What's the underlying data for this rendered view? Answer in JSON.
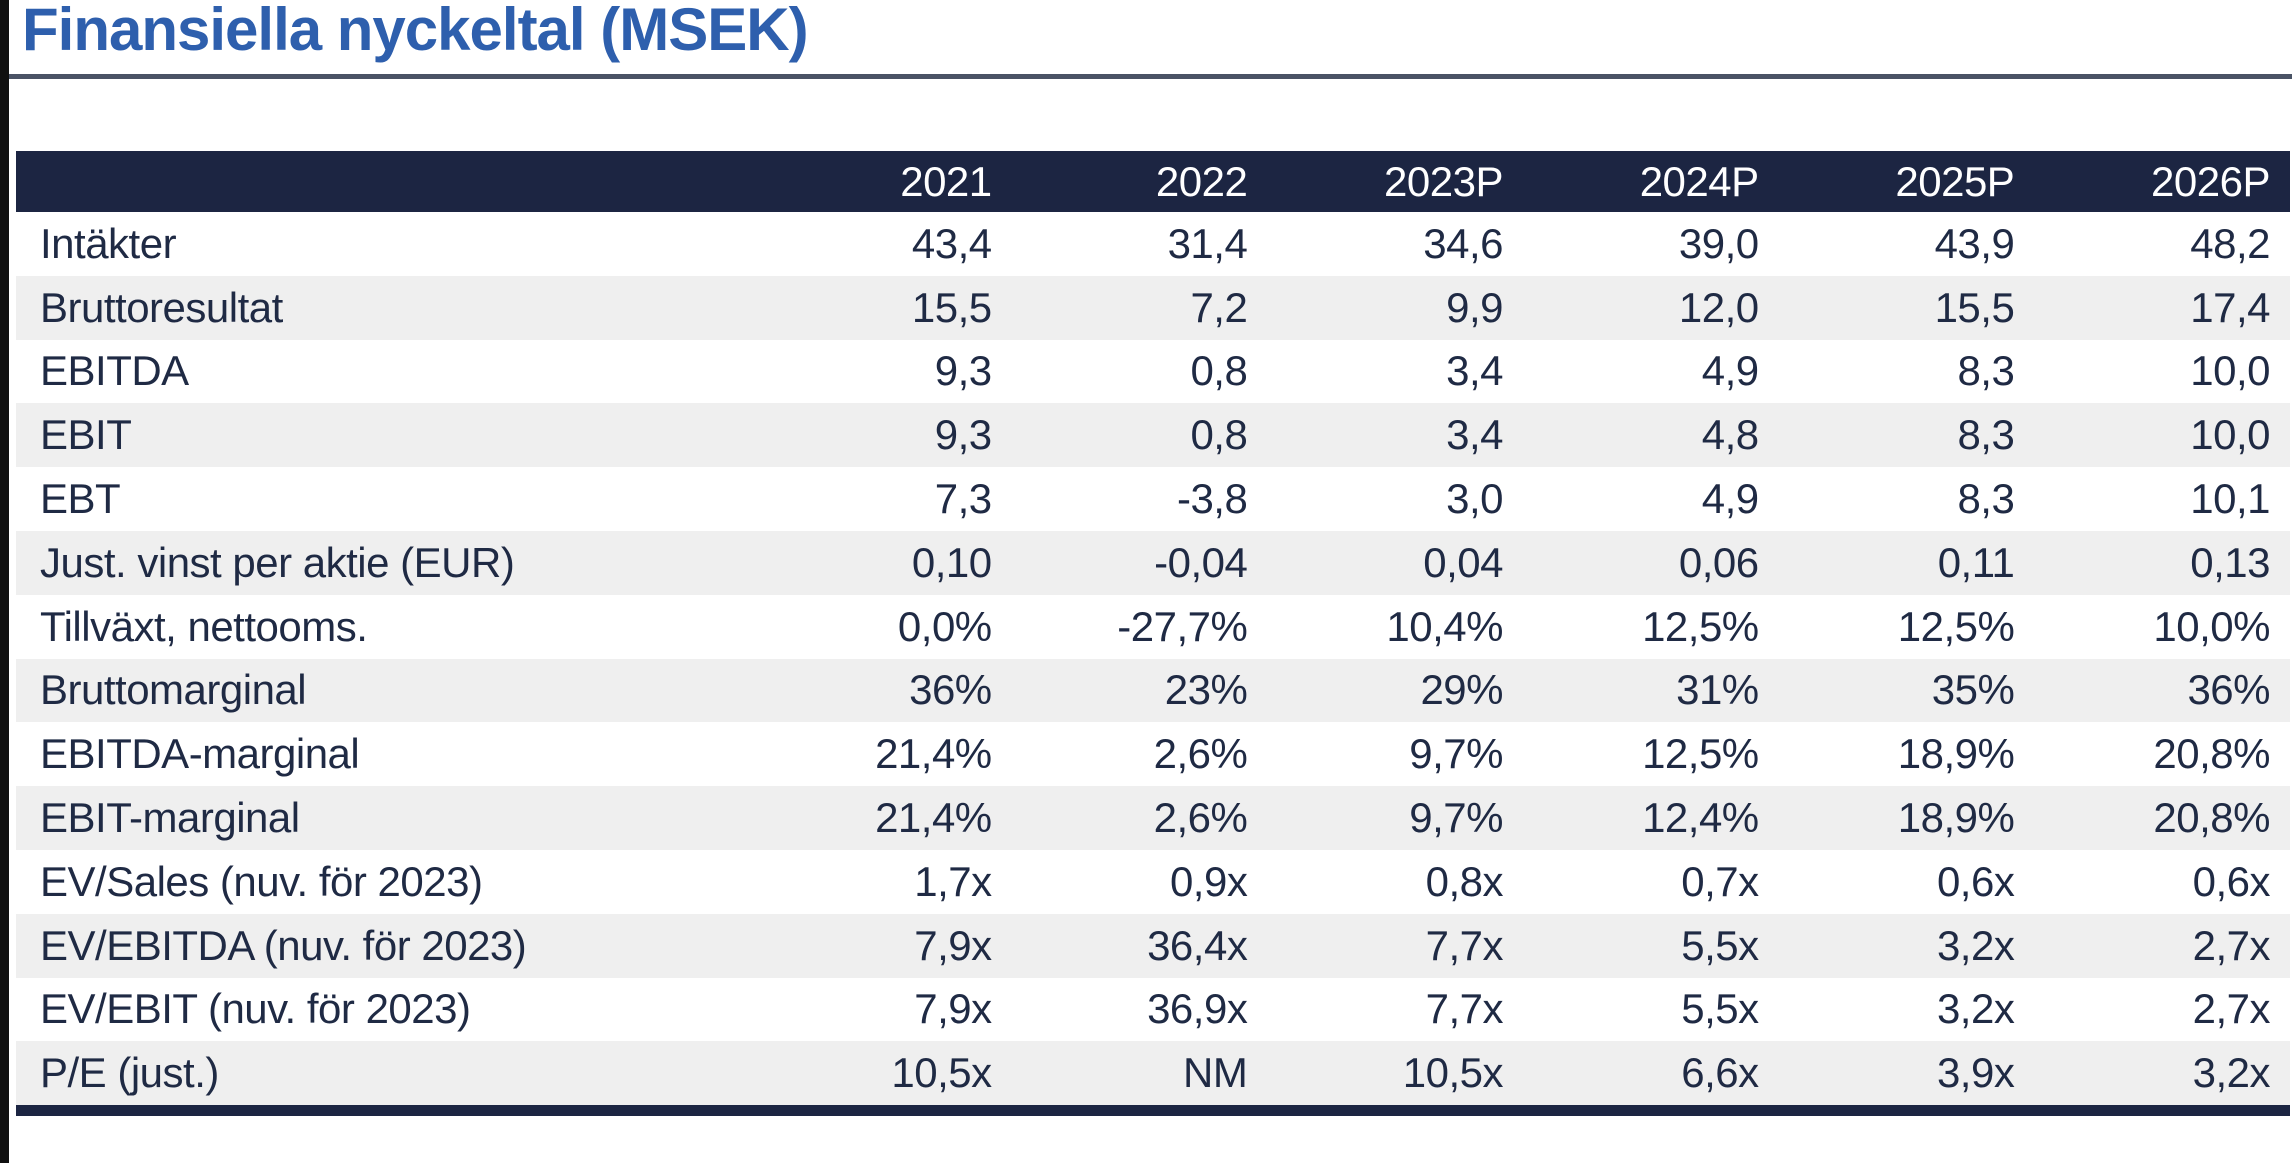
{
  "title": "Finansiella nyckeltal (MSEK)",
  "table": {
    "label_header": "",
    "columns": [
      "2021",
      "2022",
      "2023P",
      "2024P",
      "2025P",
      "2026P"
    ],
    "rows": [
      {
        "label": "Intäkter",
        "values": [
          "43,4",
          "31,4",
          "34,6",
          "39,0",
          "43,9",
          "48,2"
        ]
      },
      {
        "label": "Bruttoresultat",
        "values": [
          "15,5",
          "7,2",
          "9,9",
          "12,0",
          "15,5",
          "17,4"
        ]
      },
      {
        "label": "EBITDA",
        "values": [
          "9,3",
          "0,8",
          "3,4",
          "4,9",
          "8,3",
          "10,0"
        ]
      },
      {
        "label": "EBIT",
        "values": [
          "9,3",
          "0,8",
          "3,4",
          "4,8",
          "8,3",
          "10,0"
        ]
      },
      {
        "label": "EBT",
        "values": [
          "7,3",
          "-3,8",
          "3,0",
          "4,9",
          "8,3",
          "10,1"
        ]
      },
      {
        "label": "Just. vinst per aktie (EUR)",
        "values": [
          "0,10",
          "-0,04",
          "0,04",
          "0,06",
          "0,11",
          "0,13"
        ]
      },
      {
        "label": "Tillväxt, nettooms.",
        "values": [
          "0,0%",
          "-27,7%",
          "10,4%",
          "12,5%",
          "12,5%",
          "10,0%"
        ]
      },
      {
        "label": "Bruttomarginal",
        "values": [
          "36%",
          "23%",
          "29%",
          "31%",
          "35%",
          "36%"
        ]
      },
      {
        "label": "EBITDA-marginal",
        "values": [
          "21,4%",
          "2,6%",
          "9,7%",
          "12,5%",
          "18,9%",
          "20,8%"
        ]
      },
      {
        "label": "EBIT-marginal",
        "values": [
          "21,4%",
          "2,6%",
          "9,7%",
          "12,4%",
          "18,9%",
          "20,8%"
        ]
      },
      {
        "label": "EV/Sales (nuv. för 2023)",
        "values": [
          "1,7x",
          "0,9x",
          "0,8x",
          "0,7x",
          "0,6x",
          "0,6x"
        ]
      },
      {
        "label": "EV/EBITDA (nuv. för 2023)",
        "values": [
          "7,9x",
          "36,4x",
          "7,7x",
          "5,5x",
          "3,2x",
          "2,7x"
        ]
      },
      {
        "label": "EV/EBIT (nuv. för 2023)",
        "values": [
          "7,9x",
          "36,9x",
          "7,7x",
          "5,5x",
          "3,2x",
          "2,7x"
        ]
      },
      {
        "label": "P/E (just.)",
        "values": [
          "10,5x",
          "NM",
          "10,5x",
          "6,6x",
          "3,9x",
          "3,2x"
        ]
      }
    ]
  },
  "colors": {
    "title_blue": "#2e5fad",
    "header_navy": "#1c2542",
    "row_stripe_gray": "#efefef",
    "text_navy": "#1f2a44",
    "title_rule_gray": "#4a5365",
    "page_edge_black": "#101010"
  }
}
